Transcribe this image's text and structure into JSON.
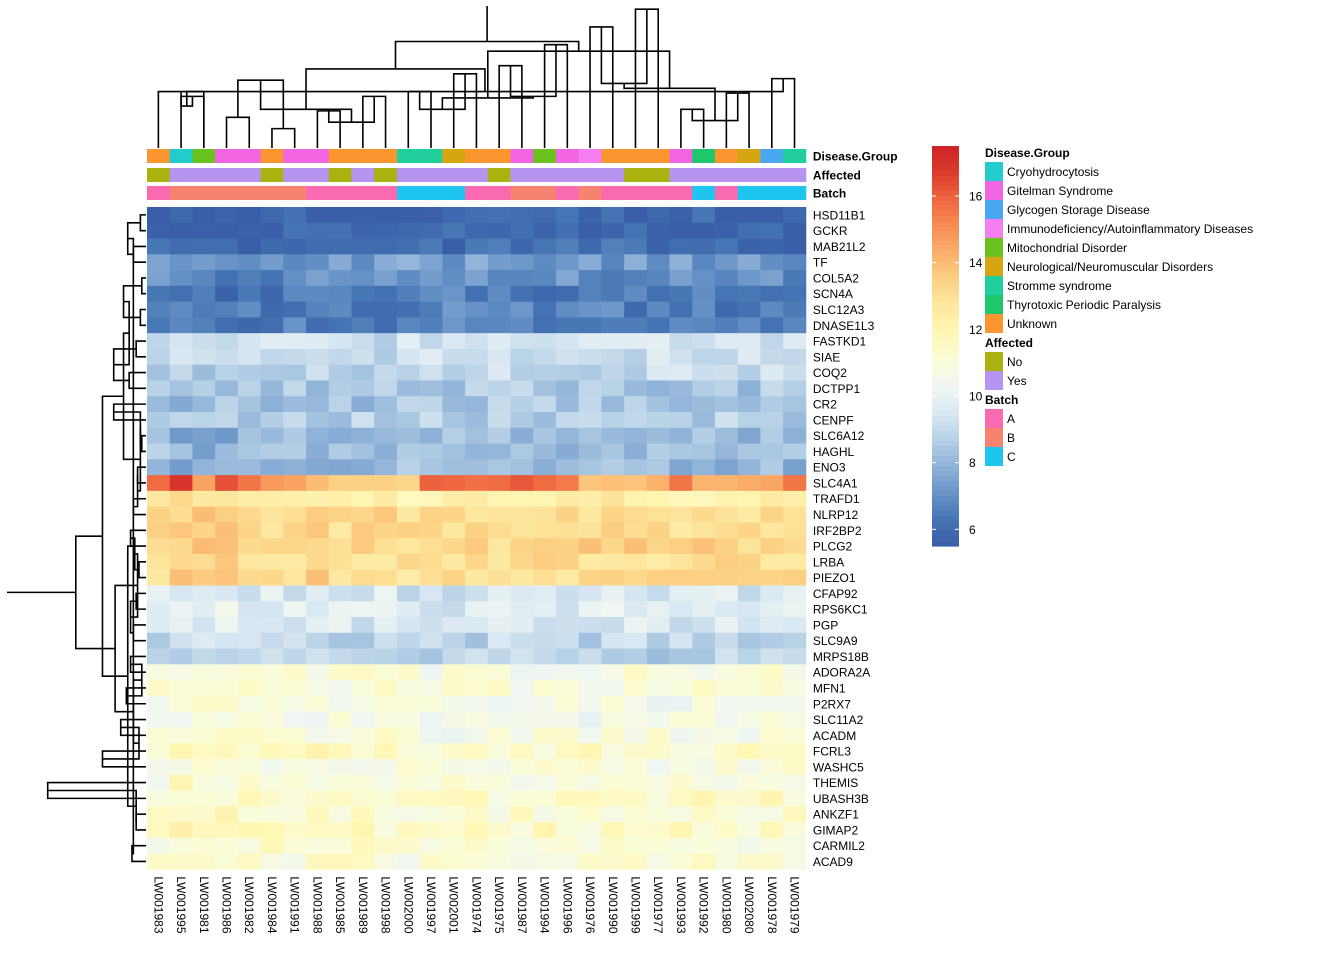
{
  "chart_data": {
    "type": "heatmap",
    "samples": [
      "LW001983",
      "LW001995",
      "LW001981",
      "LW001986",
      "LW001982",
      "LW001984",
      "LW001991",
      "LW001988",
      "LW001985",
      "LW001989",
      "LW001998",
      "LW002000",
      "LW001997",
      "LW002001",
      "LW001974",
      "LW001975",
      "LW001987",
      "LW001994",
      "LW001996",
      "LW001976",
      "LW001990",
      "LW001999",
      "LW001977",
      "LW001993",
      "LW001992",
      "LW001980",
      "LW002080",
      "LW001978",
      "LW001979"
    ],
    "genes": [
      "HSD11B1",
      "GCKR",
      "MAB21L2",
      "TF",
      "COL5A2",
      "SCN4A",
      "SLC12A3",
      "DNASE1L3",
      "FASTKD1",
      "SIAE",
      "COQ2",
      "DCTPP1",
      "CR2",
      "CENPF",
      "SLC6A12",
      "HAGHL",
      "ENO3",
      "SLC4A1",
      "TRAFD1",
      "NLRP12",
      "IRF2BP2",
      "PLCG2",
      "LRBA",
      "PIEZO1",
      "CFAP92",
      "RPS6KC1",
      "PGP",
      "SLC9A9",
      "MRPS18B",
      "ADORA2A",
      "MFN1",
      "P2RX7",
      "SLC11A2",
      "ACADM",
      "FCRL3",
      "WASHC5",
      "THEMIS",
      "UBASH3B",
      "ANKZF1",
      "GIMAP2",
      "CARMIL2",
      "ACAD9"
    ],
    "gene_means": [
      5.8,
      5.9,
      6.0,
      7.3,
      7.0,
      6.4,
      6.6,
      6.6,
      9.3,
      9.2,
      9.0,
      8.5,
      8.4,
      8.7,
      8.1,
      8.3,
      8.1,
      15.0,
      12.3,
      13.1,
      13.1,
      13.3,
      13.0,
      13.1,
      9.4,
      9.7,
      9.5,
      8.9,
      8.8,
      10.9,
      11.0,
      10.6,
      10.6,
      10.8,
      11.3,
      10.9,
      11.0,
      11.4,
      11.3,
      11.4,
      11.1,
      11.0
    ],
    "col_offsets": [
      0.1,
      0.6,
      0.5,
      0.4,
      0.4,
      0.2,
      0.2,
      0.3,
      0.1,
      0.1,
      0.2,
      -0.2,
      -0.3,
      -0.2,
      -0.1,
      -0.1,
      -0.1,
      0.0,
      -0.1,
      0.0,
      0.0,
      0.1,
      0.0,
      0.0,
      0.0,
      0.1,
      0.0,
      0.1,
      0.2
    ],
    "slc4a1_values": [
      15.8,
      16.9,
      14.6,
      16.3,
      15.6,
      14.8,
      14.6,
      14.0,
      13.5,
      13.5,
      13.5,
      13.3,
      16.0,
      15.9,
      15.7,
      15.8,
      16.2,
      15.8,
      15.5,
      13.8,
      13.9,
      13.8,
      14.3,
      15.6,
      14.2,
      14.2,
      14.4,
      14.5,
      15.6
    ],
    "color_scale": {
      "min": 5.5,
      "max": 17.5,
      "ticks": [
        "6",
        "8",
        "10",
        "12",
        "14",
        "16"
      ],
      "tick_values": [
        6,
        8,
        10,
        12,
        14,
        16
      ],
      "colors": [
        "#3a5ea8",
        "#4575b4",
        "#6a94c8",
        "#8fb2d8",
        "#b7d1e6",
        "#dbe9f3",
        "#f0f7f2",
        "#fafcd8",
        "#fff7b4",
        "#fde8a0",
        "#fcd184",
        "#fbb06b",
        "#f88c54",
        "#ee6741",
        "#dc3b2e",
        "#cc2027"
      ]
    },
    "annotations": {
      "rows": [
        "Disease.Group",
        "Affected",
        "Batch"
      ],
      "Disease.Group": [
        "Unknown",
        "Cryohydrocytosis",
        "Mitochondrial Disorder",
        "Gitelman Syndrome",
        "Gitelman Syndrome",
        "Unknown",
        "Gitelman Syndrome",
        "Gitelman Syndrome",
        "Unknown",
        "Unknown",
        "Unknown",
        "Stromme syndrome",
        "Stromme syndrome",
        "Neurological/Neuromuscular Disorders",
        "Unknown",
        "Unknown",
        "Gitelman Syndrome",
        "Mitochondrial Disorder",
        "Gitelman Syndrome",
        "Immunodeficiency/Autoinflammatory Diseases",
        "Unknown",
        "Unknown",
        "Unknown",
        "Gitelman Syndrome",
        "Thyrotoxic Periodic Paralysis",
        "Unknown",
        "Neurological/Neuromuscular Disorders",
        "Glycogen Storage Disease",
        "Stromme syndrome"
      ],
      "Affected": [
        "No",
        "Yes",
        "Yes",
        "Yes",
        "Yes",
        "No",
        "Yes",
        "Yes",
        "No",
        "Yes",
        "No",
        "Yes",
        "Yes",
        "Yes",
        "Yes",
        "No",
        "Yes",
        "Yes",
        "Yes",
        "Yes",
        "Yes",
        "No",
        "No",
        "Yes",
        "Yes",
        "Yes",
        "Yes",
        "Yes",
        "Yes"
      ],
      "Batch": [
        "A",
        "B",
        "B",
        "B",
        "B",
        "B",
        "B",
        "A",
        "A",
        "A",
        "A",
        "C",
        "C",
        "C",
        "A",
        "A",
        "B",
        "B",
        "A",
        "B",
        "A",
        "A",
        "A",
        "A",
        "C",
        "A",
        "C",
        "C",
        "C"
      ]
    },
    "legends": [
      {
        "title": "Disease.Group",
        "items": [
          {
            "label": "Cryohydrocytosis",
            "color": "#22cccc"
          },
          {
            "label": "Gitelman Syndrome",
            "color": "#f265e2"
          },
          {
            "label": "Glycogen Storage Disease",
            "color": "#4aa8f0"
          },
          {
            "label": "Immunodeficiency/Autoinflammatory Diseases",
            "color": "#f47ef0"
          },
          {
            "label": "Mitochondrial Disorder",
            "color": "#6ac21f"
          },
          {
            "label": "Neurological/Neuromuscular Disorders",
            "color": "#d6a612"
          },
          {
            "label": "Stromme syndrome",
            "color": "#22cf9c"
          },
          {
            "label": "Thyrotoxic Periodic Paralysis",
            "color": "#1ec76b"
          },
          {
            "label": "Unknown",
            "color": "#fb9530"
          }
        ]
      },
      {
        "title": "Affected",
        "items": [
          {
            "label": "No",
            "color": "#a9b20f"
          },
          {
            "label": "Yes",
            "color": "#b694f0"
          }
        ]
      },
      {
        "title": "Batch",
        "items": [
          {
            "label": "A",
            "color": "#f96ab0"
          },
          {
            "label": "B",
            "color": "#f6836f"
          },
          {
            "label": "C",
            "color": "#1ec5ee"
          }
        ]
      }
    ],
    "col_dendrogram": [
      [
        0,
        2,
        3.5
      ],
      [
        1,
        2,
        3.2
      ],
      [
        3,
        4,
        1.9
      ],
      [
        5,
        6,
        1.2
      ],
      [
        7,
        8,
        2.3
      ],
      [
        9,
        10,
        3.2
      ],
      [
        11,
        12,
        3.5
      ],
      [
        13,
        14,
        4.6
      ],
      [
        15,
        16,
        5.1
      ],
      [
        17,
        18,
        6.4
      ],
      [
        19,
        20,
        7.5
      ],
      [
        21,
        22,
        8.6
      ],
      [
        23,
        24,
        2.4
      ],
      [
        25,
        26,
        3.4
      ],
      [
        27,
        28,
        4.3
      ],
      [
        29,
        30,
        2.6
      ],
      [
        31,
        32,
        4.2
      ],
      [
        33,
        34,
        1.6
      ],
      [
        35,
        36,
        2.4
      ],
      [
        37,
        38,
        3.2
      ],
      [
        39,
        40,
        4.0
      ],
      [
        41,
        42,
        1.7
      ],
      [
        43,
        44,
        3.5
      ],
      [
        45,
        46,
        2.4
      ],
      [
        47,
        48,
        3.1
      ],
      [
        49,
        50,
        3.7
      ],
      [
        51,
        52,
        4.9
      ],
      [
        53,
        54,
        6.0
      ],
      [
        55,
        56,
        6.6
      ],
      [
        57,
        58,
        8.8
      ]
    ],
    "row_dendrogram": [
      [
        0,
        1,
        0.4
      ],
      [
        2,
        3,
        0.9
      ],
      [
        4,
        5,
        0.3
      ],
      [
        6,
        7,
        0.4
      ],
      [
        8,
        9,
        0.7
      ],
      [
        10,
        11,
        1.2
      ],
      [
        12,
        13,
        2.3
      ],
      [
        14,
        15,
        0.3
      ],
      [
        16,
        17,
        0.6
      ],
      [
        18,
        19,
        0.9
      ],
      [
        20,
        21,
        1.1
      ],
      [
        22,
        23,
        0.5
      ],
      [
        24,
        25,
        0.7
      ],
      [
        26,
        27,
        0.9
      ],
      [
        28,
        29,
        1.1
      ],
      [
        30,
        31,
        1.4
      ],
      [
        32,
        33,
        1.8
      ],
      [
        34,
        35,
        3.1
      ],
      [
        36,
        37,
        7.0
      ],
      [
        38,
        39,
        0.7
      ],
      [
        40,
        41,
        1.0
      ],
      [
        42,
        43,
        1.3
      ],
      [
        44,
        45,
        1.6
      ],
      [
        46,
        47,
        2.3
      ],
      [
        48,
        49,
        0.4
      ],
      [
        50,
        51,
        0.6
      ],
      [
        52,
        53,
        0.8
      ],
      [
        54,
        55,
        1.1
      ],
      [
        56,
        57,
        0.3
      ],
      [
        58,
        59,
        0.5
      ],
      [
        60,
        61,
        0.7
      ],
      [
        62,
        63,
        0.9
      ],
      [
        64,
        65,
        1.2
      ],
      [
        66,
        67,
        0.4
      ],
      [
        68,
        69,
        0.6
      ],
      [
        70,
        71,
        0.9
      ],
      [
        72,
        73,
        1.3
      ],
      [
        74,
        75,
        1.6
      ],
      [
        76,
        77,
        2.2
      ],
      [
        78,
        79,
        3.1
      ],
      [
        80,
        81,
        5.0
      ],
      [
        82,
        83,
        9.9
      ]
    ]
  }
}
